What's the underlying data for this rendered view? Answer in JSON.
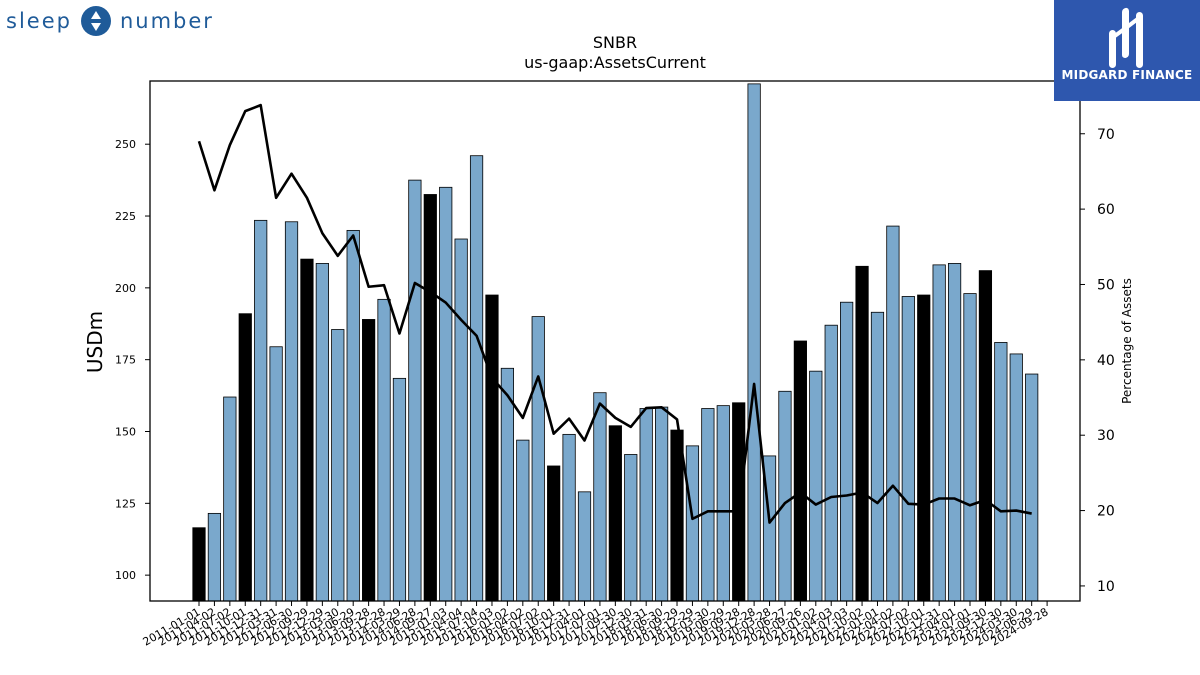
{
  "branding": {
    "left_logo_text_1": "sleep",
    "left_logo_text_2": "number",
    "right_logo_text": "MIDGARD FINANCE"
  },
  "colors": {
    "bar_quarter": "#7aa8cc",
    "bar_annual": "#000000",
    "line": "#000000",
    "right_logo_bg": "#2e57ae",
    "left_logo": "#1f5b99"
  },
  "chart_data": {
    "type": "bar",
    "title": "SNBR",
    "subtitle": "us-gaap:AssetsCurrent",
    "ylabel": "USDm",
    "y2label": "Percentage of Assets",
    "ylim": [
      91,
      272
    ],
    "y2lim": [
      8,
      77
    ],
    "yticks": [
      100,
      125,
      150,
      175,
      200,
      225,
      250
    ],
    "y2ticks": [
      10,
      20,
      30,
      40,
      50,
      60,
      70
    ],
    "categories": [
      "2011-01-01",
      "2011-04-02",
      "2011-07-02",
      "2011-10-01",
      "2011-12-31",
      "2012-03-31",
      "2012-06-30",
      "2012-09-29",
      "2012-12-29",
      "2013-03-30",
      "2013-06-29",
      "2013-09-28",
      "2013-12-28",
      "2014-03-29",
      "2014-06-28",
      "2014-09-27",
      "2015-01-03",
      "2015-04-04",
      "2015-07-04",
      "2015-10-03",
      "2016-01-02",
      "2016-04-02",
      "2016-07-02",
      "2016-10-01",
      "2016-12-31",
      "2017-04-01",
      "2017-07-01",
      "2017-09-30",
      "2017-12-30",
      "2018-03-31",
      "2018-06-30",
      "2018-09-29",
      "2018-12-29",
      "2019-03-30",
      "2019-06-29",
      "2019-09-28",
      "2019-12-28",
      "2020-03-28",
      "2020-06-27",
      "2020-09-26",
      "2021-01-02",
      "2021-04-03",
      "2021-07-03",
      "2021-10-02",
      "2022-01-01",
      "2022-04-02",
      "2022-07-02",
      "2022-10-01",
      "2022-12-31",
      "2023-04-01",
      "2023-07-01",
      "2023-09-30",
      "2023-12-30",
      "2024-03-30",
      "2024-06-29",
      "2024-09-28"
    ],
    "series": [
      {
        "kind": "bar",
        "values": [
          116.5,
          121.5,
          162,
          191,
          223.5,
          179.5,
          223,
          210,
          208.5,
          185.5,
          220,
          189,
          196,
          168.5,
          237.5,
          232.5,
          235,
          217,
          246,
          197.5,
          172,
          147,
          190,
          138,
          149,
          129,
          163.5,
          152,
          142,
          158,
          158.5,
          150.5,
          145,
          158,
          159,
          160,
          271,
          141.5,
          164,
          181.5,
          171,
          187,
          195,
          207.5,
          191.5,
          221.5,
          197,
          197.5,
          208,
          208.5,
          198,
          206,
          181,
          177,
          170,
          null
        ],
        "annual": [
          true,
          false,
          false,
          true,
          false,
          false,
          false,
          true,
          false,
          false,
          false,
          true,
          false,
          false,
          false,
          true,
          false,
          false,
          false,
          true,
          false,
          false,
          false,
          true,
          false,
          false,
          false,
          true,
          false,
          false,
          false,
          true,
          false,
          false,
          false,
          true,
          false,
          false,
          false,
          true,
          false,
          false,
          false,
          true,
          false,
          false,
          false,
          true,
          false,
          false,
          false,
          true,
          false,
          false,
          false,
          false
        ]
      },
      {
        "kind": "line",
        "axis": "right",
        "values": [
          69,
          62.5,
          68.5,
          73,
          73.8,
          61.5,
          64.7,
          61.5,
          56.8,
          53.8,
          56.5,
          49.7,
          49.9,
          43.5,
          50.2,
          49,
          47.6,
          45.3,
          43.2,
          37.6,
          35.3,
          32.3,
          37.8,
          30.2,
          32.2,
          29.3,
          34.2,
          32.3,
          31.1,
          33.6,
          33.7,
          32.1,
          18.9,
          19.9,
          19.9,
          19.9,
          36.8,
          18.4,
          21,
          22.4,
          20.8,
          21.8,
          22,
          22.4,
          21,
          23.3,
          20.9,
          20.8,
          21.6,
          21.6,
          20.7,
          21.4,
          19.9,
          20,
          19.6,
          null
        ]
      }
    ]
  }
}
